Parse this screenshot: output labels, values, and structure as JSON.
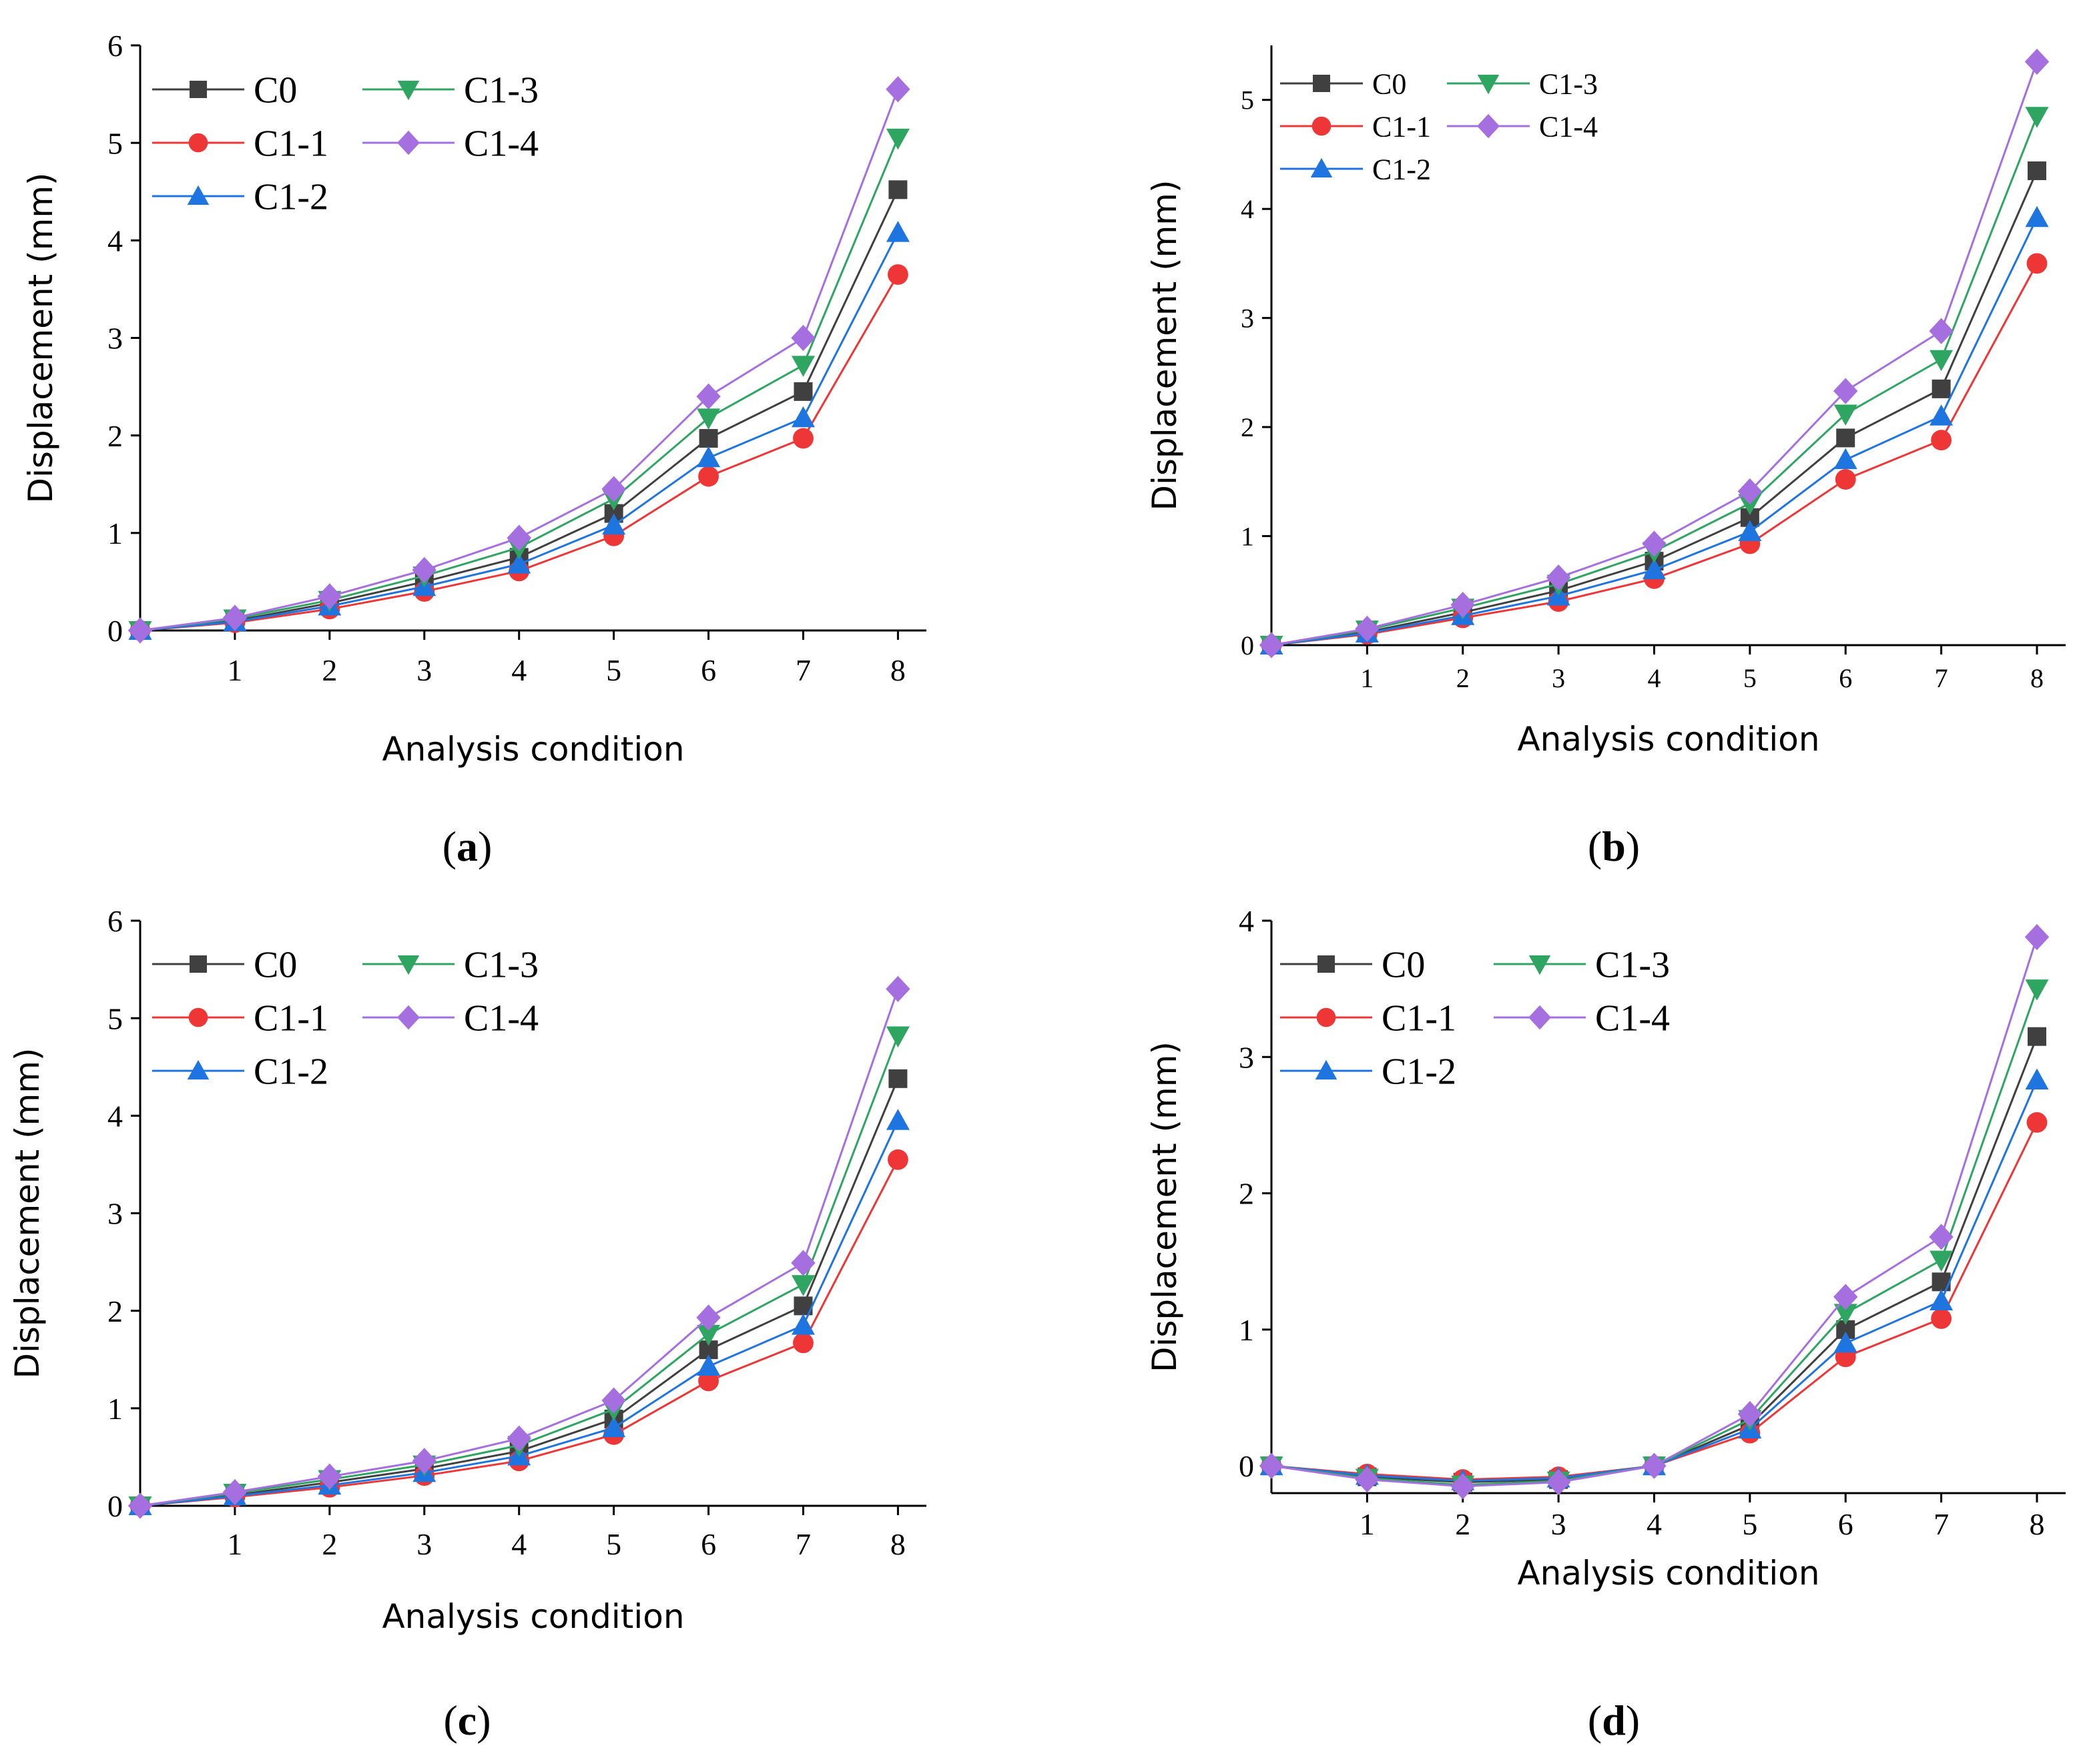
{
  "figure": {
    "panel_labels": [
      {
        "letter": "a",
        "open": "(",
        "close": ")"
      },
      {
        "letter": "b",
        "open": "(",
        "close": ")"
      },
      {
        "letter": "c",
        "open": "(",
        "close": ")"
      },
      {
        "letter": "d",
        "open": "(",
        "close": ")"
      }
    ]
  },
  "colors": {
    "C0": "#404040",
    "C1-1": "#ee3636",
    "C1-2": "#1f75e0",
    "C1-3": "#2fa562",
    "C1-4": "#a66fe0"
  },
  "chart_data": [
    {
      "type": "line",
      "panel": "a",
      "xlabel": "Analysis condition",
      "ylabel": "Displacement (mm)",
      "x": [
        0,
        1,
        2,
        3,
        4,
        5,
        6,
        7,
        8
      ],
      "xticks": [
        1,
        2,
        3,
        4,
        5,
        6,
        7,
        8
      ],
      "ylim": [
        0,
        6
      ],
      "yticks": [
        0,
        1,
        2,
        3,
        4,
        5,
        6
      ],
      "legend_position": "top-left",
      "series": [
        {
          "name": "C0",
          "marker": "square",
          "values": [
            0,
            0.1,
            0.28,
            0.5,
            0.75,
            1.2,
            1.97,
            2.45,
            4.52
          ]
        },
        {
          "name": "C1-1",
          "marker": "circle",
          "values": [
            0,
            0.08,
            0.22,
            0.4,
            0.61,
            0.97,
            1.58,
            1.97,
            3.65
          ]
        },
        {
          "name": "C1-2",
          "marker": "triangle-up",
          "values": [
            0,
            0.09,
            0.25,
            0.45,
            0.68,
            1.08,
            1.77,
            2.18,
            4.08
          ]
        },
        {
          "name": "C1-3",
          "marker": "triangle-down",
          "values": [
            0,
            0.12,
            0.31,
            0.56,
            0.85,
            1.35,
            2.18,
            2.72,
            5.05
          ]
        },
        {
          "name": "C1-4",
          "marker": "diamond",
          "values": [
            0,
            0.13,
            0.35,
            0.62,
            0.95,
            1.45,
            2.4,
            3.0,
            5.55
          ]
        }
      ]
    },
    {
      "type": "line",
      "panel": "b",
      "xlabel": "Analysis condition",
      "ylabel": "Displacement (mm)",
      "x": [
        0,
        1,
        2,
        3,
        4,
        5,
        6,
        7,
        8
      ],
      "xticks": [
        1,
        2,
        3,
        4,
        5,
        6,
        7,
        8
      ],
      "ylim": [
        0,
        5.5
      ],
      "yticks": [
        0,
        1,
        2,
        3,
        4,
        5
      ],
      "legend_position": "top-left",
      "series": [
        {
          "name": "C0",
          "marker": "square",
          "values": [
            0,
            0.12,
            0.3,
            0.5,
            0.77,
            1.17,
            1.9,
            2.35,
            4.35
          ]
        },
        {
          "name": "C1-1",
          "marker": "circle",
          "values": [
            0,
            0.1,
            0.25,
            0.4,
            0.61,
            0.93,
            1.52,
            1.88,
            3.5
          ]
        },
        {
          "name": "C1-2",
          "marker": "triangle-up",
          "values": [
            0,
            0.11,
            0.27,
            0.45,
            0.69,
            1.04,
            1.7,
            2.1,
            3.92
          ]
        },
        {
          "name": "C1-3",
          "marker": "triangle-down",
          "values": [
            0,
            0.14,
            0.34,
            0.56,
            0.86,
            1.3,
            2.12,
            2.62,
            4.85
          ]
        },
        {
          "name": "C1-4",
          "marker": "diamond",
          "values": [
            0,
            0.15,
            0.37,
            0.62,
            0.93,
            1.41,
            2.33,
            2.88,
            5.35
          ]
        }
      ]
    },
    {
      "type": "line",
      "panel": "c",
      "xlabel": "Analysis condition",
      "ylabel": "Displacement (mm)",
      "x": [
        0,
        1,
        2,
        3,
        4,
        5,
        6,
        7,
        8
      ],
      "xticks": [
        1,
        2,
        3,
        4,
        5,
        6,
        7,
        8
      ],
      "ylim": [
        0,
        6
      ],
      "yticks": [
        0,
        1,
        2,
        3,
        4,
        5,
        6
      ],
      "legend_position": "top-left",
      "series": [
        {
          "name": "C0",
          "marker": "square",
          "values": [
            0,
            0.11,
            0.24,
            0.38,
            0.56,
            0.89,
            1.6,
            2.05,
            4.38
          ]
        },
        {
          "name": "C1-1",
          "marker": "circle",
          "values": [
            0,
            0.09,
            0.19,
            0.31,
            0.46,
            0.73,
            1.28,
            1.67,
            3.55
          ]
        },
        {
          "name": "C1-2",
          "marker": "triangle-up",
          "values": [
            0,
            0.1,
            0.21,
            0.34,
            0.51,
            0.8,
            1.43,
            1.85,
            3.95
          ]
        },
        {
          "name": "C1-3",
          "marker": "triangle-down",
          "values": [
            0,
            0.13,
            0.27,
            0.42,
            0.62,
            0.99,
            1.76,
            2.27,
            4.82
          ]
        },
        {
          "name": "C1-4",
          "marker": "diamond",
          "values": [
            0,
            0.14,
            0.3,
            0.46,
            0.69,
            1.08,
            1.93,
            2.49,
            5.3
          ]
        }
      ]
    },
    {
      "type": "line",
      "panel": "d",
      "xlabel": "Analysis condition",
      "ylabel": "Displacement (mm)",
      "x": [
        0,
        1,
        2,
        3,
        4,
        5,
        6,
        7,
        8
      ],
      "xticks": [
        1,
        2,
        3,
        4,
        5,
        6,
        7,
        8
      ],
      "ylim": [
        -0.2,
        4
      ],
      "yticks": [
        0,
        1,
        2,
        3,
        4
      ],
      "legend_position": "top-left",
      "series": [
        {
          "name": "C0",
          "marker": "square",
          "values": [
            0,
            -0.08,
            -0.12,
            -0.1,
            0,
            0.3,
            1.0,
            1.35,
            3.15
          ]
        },
        {
          "name": "C1-1",
          "marker": "circle",
          "values": [
            0,
            -0.06,
            -0.1,
            -0.08,
            0,
            0.24,
            0.8,
            1.08,
            2.52
          ]
        },
        {
          "name": "C1-2",
          "marker": "triangle-up",
          "values": [
            0,
            -0.07,
            -0.11,
            -0.09,
            0,
            0.27,
            0.9,
            1.21,
            2.83
          ]
        },
        {
          "name": "C1-3",
          "marker": "triangle-down",
          "values": [
            0,
            -0.09,
            -0.14,
            -0.11,
            0,
            0.34,
            1.12,
            1.51,
            3.5
          ]
        },
        {
          "name": "C1-4",
          "marker": "diamond",
          "values": [
            0,
            -0.1,
            -0.15,
            -0.12,
            0,
            0.38,
            1.24,
            1.68,
            3.88
          ]
        }
      ]
    }
  ]
}
